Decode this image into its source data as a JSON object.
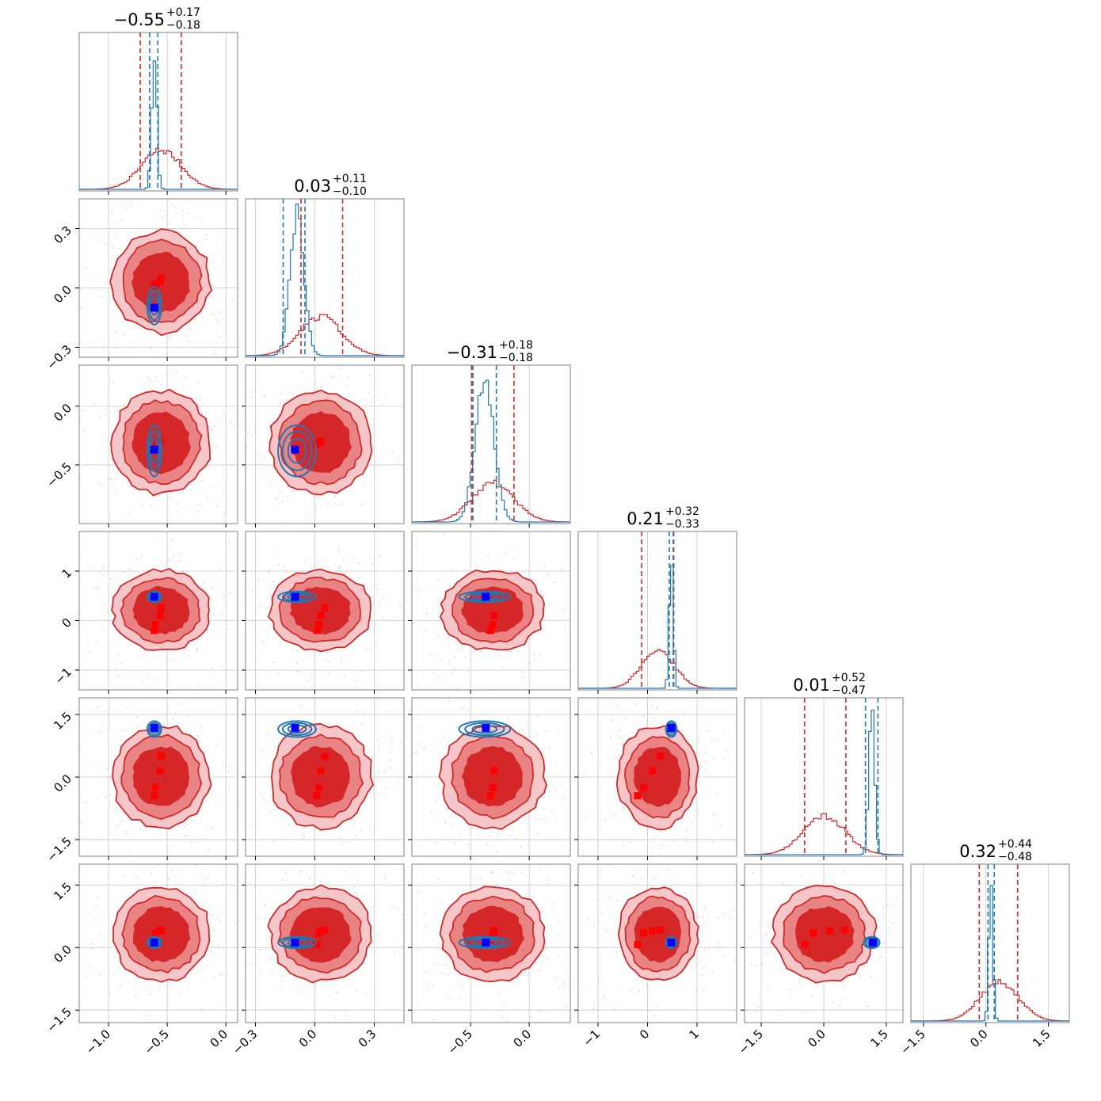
{
  "chart_data": {
    "type": "corner",
    "colors": {
      "reference": "#d62728",
      "reference_fill": "#d62728",
      "comparison": "#1f77b4",
      "marker_reference": "#ff0000",
      "marker_comparison": "#0000ff",
      "grid": "#c8c8c8"
    },
    "params": [
      {
        "range": [
          -1.25,
          0.1
        ],
        "ticks": [
          -1.0,
          -0.5,
          0.0
        ],
        "tick_labels": [
          "−1.0",
          "−0.5",
          "0.0"
        ],
        "title": {
          "main": "−0.55",
          "plus": "+0.17",
          "minus": "−0.18"
        },
        "ref": {
          "mean": -0.55,
          "sd": 0.17,
          "q": [
            -0.73,
            -0.38
          ]
        },
        "cmp": {
          "mean": -0.61,
          "sd": 0.022,
          "q": [
            -0.65,
            -0.58
          ]
        },
        "truth_blue": -0.61,
        "truth_red": [
          -0.61,
          -0.6,
          -0.56,
          -0.55,
          -0.53
        ]
      },
      {
        "range": [
          -0.35,
          0.45
        ],
        "ticks": [
          -0.3,
          0.0,
          0.3
        ],
        "tick_labels": [
          "−0.3",
          "0.0",
          "0.3"
        ],
        "title": {
          "main": "0.03",
          "plus": "+0.11",
          "minus": "−0.10"
        },
        "ref": {
          "mean": 0.03,
          "sd": 0.105,
          "q": [
            -0.07,
            0.14
          ]
        },
        "cmp": {
          "mean": -0.09,
          "sd": 0.035,
          "q": [
            -0.16,
            -0.05
          ]
        },
        "truth_blue": -0.1,
        "truth_red": [
          0.01,
          0.02,
          0.03,
          0.05
        ]
      },
      {
        "range": [
          -1.0,
          0.35
        ],
        "ticks": [
          -0.5,
          0.0
        ],
        "tick_labels": [
          "−0.5",
          "0.0"
        ],
        "title": {
          "main": "−0.31",
          "plus": "+0.18",
          "minus": "−0.18"
        },
        "ref": {
          "mean": -0.31,
          "sd": 0.18,
          "q": [
            -0.49,
            -0.13
          ]
        },
        "cmp": {
          "mean": -0.38,
          "sd": 0.08,
          "q": [
            -0.48,
            -0.28
          ]
        },
        "truth_blue": -0.37,
        "truth_red": [
          -0.33,
          -0.31,
          -0.3
        ]
      },
      {
        "range": [
          -1.4,
          1.8
        ],
        "ticks": [
          -1,
          0,
          1
        ],
        "tick_labels": [
          "−1",
          "0",
          "1"
        ],
        "title": {
          "main": "0.21",
          "plus": "+0.32",
          "minus": "−0.33"
        },
        "ref": {
          "mean": 0.21,
          "sd": 0.33,
          "q": [
            -0.12,
            0.53
          ]
        },
        "cmp": {
          "mean": 0.48,
          "sd": 0.04,
          "q": [
            0.44,
            0.52
          ]
        },
        "truth_blue": 0.48,
        "truth_red": [
          -0.2,
          -0.08,
          0.1,
          0.26
        ]
      },
      {
        "range": [
          -1.9,
          1.9
        ],
        "ticks": [
          -1.5,
          0.0,
          1.5
        ],
        "tick_labels": [
          "−1.5",
          "0.0",
          "1.5"
        ],
        "title": {
          "main": "0.01",
          "plus": "+0.52",
          "minus": "−0.47"
        },
        "ref": {
          "mean": 0.01,
          "sd": 0.5,
          "q": [
            -0.46,
            0.53
          ]
        },
        "cmp": {
          "mean": 1.15,
          "sd": 0.07,
          "q": [
            1.0,
            1.3
          ]
        },
        "truth_blue": 1.18,
        "truth_red": [
          -0.45,
          -0.25,
          0.15,
          0.5
        ]
      },
      {
        "range": [
          -1.8,
          2.0
        ],
        "ticks": [
          -1.5,
          0.0,
          1.5
        ],
        "tick_labels": [
          "−1.5",
          "0.0",
          "1.5"
        ],
        "title": {
          "main": "0.32",
          "plus": "+0.44",
          "minus": "−0.48"
        },
        "ref": {
          "mean": 0.32,
          "sd": 0.46,
          "q": [
            -0.16,
            0.76
          ]
        },
        "cmp": {
          "mean": 0.12,
          "sd": 0.05,
          "q": [
            0.05,
            0.2
          ]
        },
        "truth_blue": 0.12,
        "truth_red": [
          0.07,
          0.35,
          0.4,
          0.42
        ]
      }
    ]
  }
}
